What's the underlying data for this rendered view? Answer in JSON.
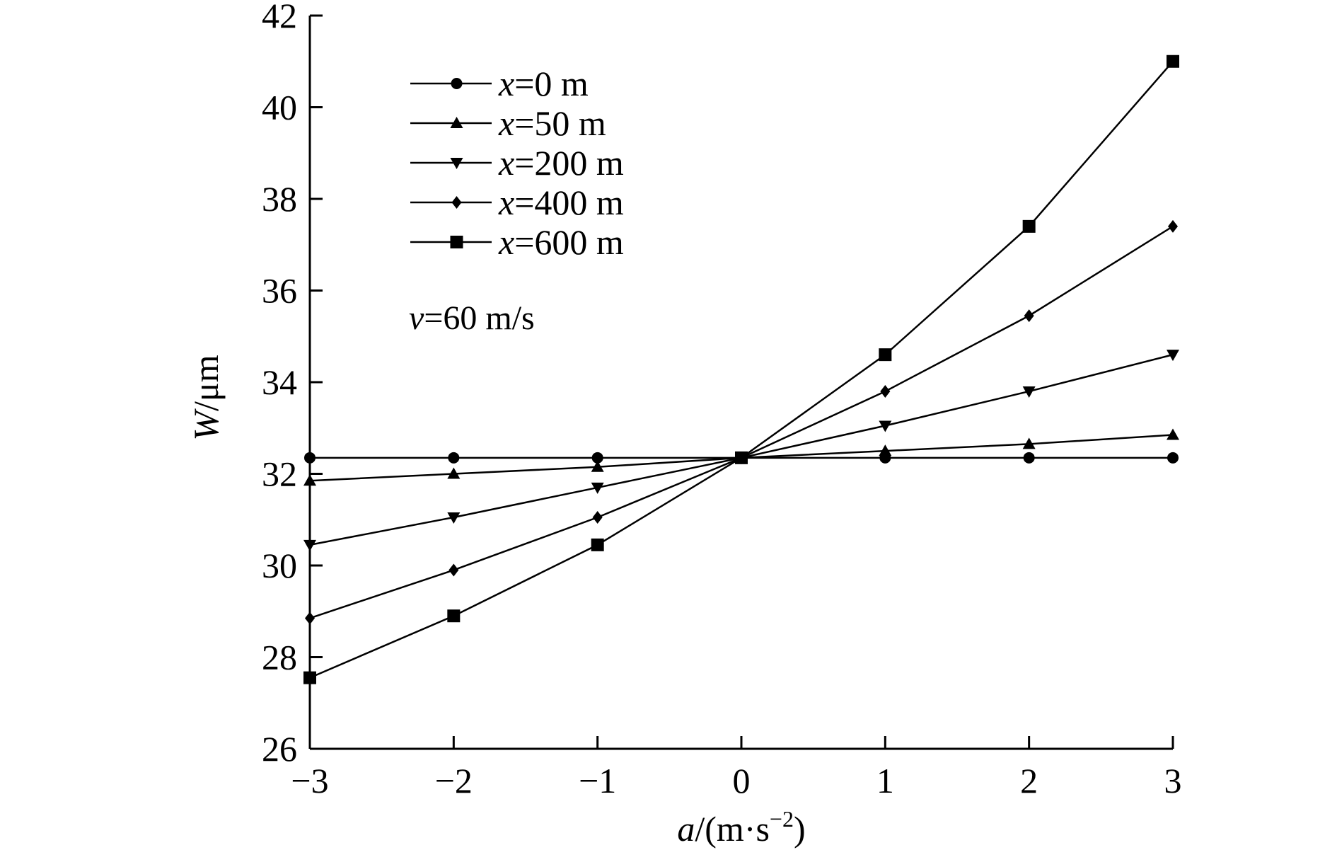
{
  "chart_data": {
    "type": "line",
    "x": [
      -3,
      -2,
      -1,
      0,
      1,
      2,
      3
    ],
    "x_tick_labels": [
      "−3",
      "−2",
      "−1",
      "0",
      "1",
      "2",
      "3"
    ],
    "y_ticks": [
      26,
      28,
      30,
      32,
      34,
      36,
      38,
      40,
      42
    ],
    "xlim": [
      -3,
      3
    ],
    "ylim": [
      26,
      42
    ],
    "xlabel": {
      "var": "a",
      "unit_open": "/(m·s",
      "exp": "−2",
      "unit_close": ")"
    },
    "ylabel": {
      "var": "W",
      "unit": "/μm"
    },
    "annotation": {
      "var": "v",
      "text": "=60 m/s"
    },
    "legend_position": "top-left",
    "series": [
      {
        "name": "x=0 m",
        "var": "x",
        "label": "=0 m",
        "marker": "circle",
        "values": [
          32.35,
          32.35,
          32.35,
          32.35,
          32.35,
          32.35,
          32.35
        ]
      },
      {
        "name": "x=50 m",
        "var": "x",
        "label": "=50 m",
        "marker": "triangle-up",
        "values": [
          31.85,
          32.0,
          32.15,
          32.35,
          32.5,
          32.65,
          32.85
        ]
      },
      {
        "name": "x=200 m",
        "var": "x",
        "label": "=200 m",
        "marker": "triangle-down",
        "values": [
          30.45,
          31.05,
          31.7,
          32.35,
          33.05,
          33.8,
          34.6
        ]
      },
      {
        "name": "x=400 m",
        "var": "x",
        "label": "=400 m",
        "marker": "diamond",
        "values": [
          28.85,
          29.9,
          31.05,
          32.35,
          33.8,
          35.45,
          37.4
        ]
      },
      {
        "name": "x=600 m",
        "var": "x",
        "label": "=600 m",
        "marker": "square",
        "values": [
          27.55,
          28.9,
          30.45,
          32.35,
          34.6,
          37.4,
          41.0
        ]
      }
    ]
  }
}
